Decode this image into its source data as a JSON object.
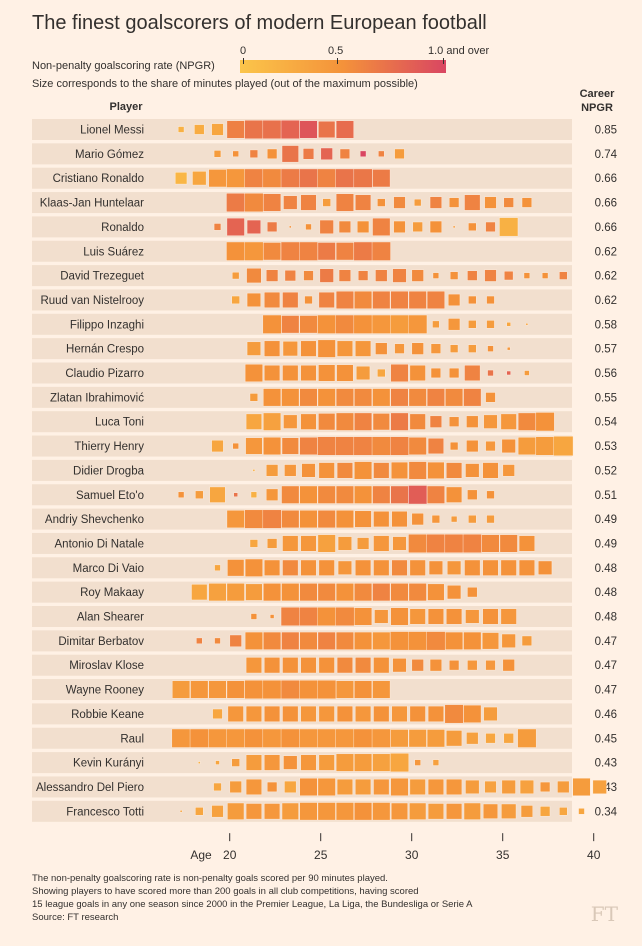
{
  "title": "The finest goalscorers of modern European football",
  "legend": {
    "color_label": "Non-penalty goalscoring rate (NPGR)",
    "size_label": "Size corresponds to the share of minutes played (out of the maximum possible)",
    "ticks": [
      "0",
      "0.5",
      "1.0 and over"
    ]
  },
  "header": {
    "player": "Player",
    "career": "Career\nNPGR"
  },
  "axis_label": "Age",
  "footer": [
    "The non-penalty goalscoring rate is non-penalty goals scored per 90 minutes played.",
    "Showing players to have scored more than 200 goals in all club competitions, having scored",
    "15 league goals in any one season since 2000 in the Premier League, La Liga, the Bundesliga or Serie A",
    "Source: FT research"
  ],
  "logo": "FT",
  "chart_data": {
    "type": "heatmap",
    "x": [
      17,
      18,
      19,
      20,
      21,
      22,
      23,
      24,
      25,
      26,
      27,
      28,
      29,
      30,
      31,
      32,
      33,
      34,
      35,
      36,
      37,
      38,
      39,
      40
    ],
    "xticks": [
      20,
      25,
      30,
      35,
      40
    ],
    "xlabel": "Age",
    "color_scale": {
      "min": 0,
      "mid": 0.5,
      "max": 1.0,
      "colors": [
        "#fbc54a",
        "#f4923a",
        "#d94662"
      ]
    },
    "players": [
      {
        "name": "Lionel Messi",
        "npgr": "0.85",
        "start": 17,
        "rate": [
          0.2,
          0.25,
          0.3,
          0.62,
          0.7,
          0.72,
          0.8,
          0.9,
          0.7,
          0.75
        ],
        "size": [
          0.3,
          0.5,
          0.6,
          0.9,
          0.95,
          0.95,
          0.95,
          0.9,
          0.85,
          0.9
        ]
      },
      {
        "name": "Mario Gómez",
        "npgr": "0.74",
        "start": 19,
        "rate": [
          0.4,
          0.5,
          0.6,
          0.5,
          0.7,
          0.65,
          0.8,
          0.6,
          1.0,
          0.6,
          0.4
        ],
        "size": [
          0.35,
          0.3,
          0.4,
          0.5,
          0.85,
          0.55,
          0.6,
          0.5,
          0.3,
          0.3,
          0.5
        ]
      },
      {
        "name": "Cristiano Ronaldo",
        "npgr": "0.66",
        "start": 17,
        "rate": [
          0.15,
          0.3,
          0.45,
          0.45,
          0.6,
          0.55,
          0.65,
          0.7,
          0.6,
          0.7,
          0.68,
          0.65
        ],
        "size": [
          0.6,
          0.7,
          0.9,
          0.95,
          0.95,
          0.95,
          0.95,
          0.95,
          0.95,
          0.95,
          0.95,
          0.9
        ]
      },
      {
        "name": "Klaas-Jan Huntelaar",
        "npgr": "0.66",
        "start": 20,
        "rate": [
          0.65,
          0.55,
          0.6,
          0.6,
          0.6,
          0.4,
          0.6,
          0.6,
          0.5,
          0.55,
          0.4,
          0.6,
          0.5,
          0.6,
          0.5,
          0.55,
          0.5
        ],
        "size": [
          0.95,
          0.95,
          0.9,
          0.7,
          0.8,
          0.4,
          0.9,
          0.8,
          0.4,
          0.6,
          0.35,
          0.6,
          0.5,
          0.8,
          0.6,
          0.5,
          0.5
        ]
      },
      {
        "name": "Ronaldo",
        "npgr": "0.66",
        "start": 19,
        "rate": [
          0.6,
          0.8,
          0.8,
          0.65,
          0.5,
          0.5,
          0.6,
          0.55,
          0.5,
          0.6,
          0.5,
          0.4,
          0.5,
          0.4,
          0.5,
          0.6,
          0.2
        ],
        "size": [
          0.35,
          0.9,
          0.7,
          0.5,
          0.1,
          0.3,
          0.7,
          0.6,
          0.6,
          0.9,
          0.6,
          0.5,
          0.6,
          0.1,
          0.4,
          0.5,
          0.95
        ]
      },
      {
        "name": "Luis Suárez",
        "npgr": "0.62",
        "start": 20,
        "rate": [
          0.5,
          0.45,
          0.55,
          0.6,
          0.6,
          0.65,
          0.6,
          0.65,
          0.6
        ],
        "size": [
          0.95,
          0.95,
          0.9,
          0.95,
          0.95,
          0.9,
          0.9,
          0.95,
          0.95
        ]
      },
      {
        "name": "David Trezeguet",
        "npgr": "0.62",
        "start": 20,
        "rate": [
          0.4,
          0.55,
          0.6,
          0.6,
          0.55,
          0.65,
          0.6,
          0.6,
          0.6,
          0.6,
          0.55,
          0.5,
          0.5,
          0.6,
          0.6,
          0.6,
          0.5,
          0.5,
          0.6
        ],
        "size": [
          0.35,
          0.75,
          0.6,
          0.55,
          0.5,
          0.7,
          0.6,
          0.5,
          0.6,
          0.7,
          0.6,
          0.3,
          0.4,
          0.5,
          0.6,
          0.45,
          0.3,
          0.3,
          0.4
        ]
      },
      {
        "name": "Ruud van Nistelrooy",
        "npgr": "0.62",
        "start": 20,
        "rate": [
          0.3,
          0.5,
          0.55,
          0.6,
          0.5,
          0.6,
          0.6,
          0.55,
          0.6,
          0.6,
          0.6,
          0.6,
          0.5,
          0.5,
          0.5
        ],
        "size": [
          0.4,
          0.7,
          0.8,
          0.8,
          0.4,
          0.8,
          0.9,
          0.9,
          0.9,
          0.9,
          0.9,
          0.9,
          0.6,
          0.4,
          0.4
        ]
      },
      {
        "name": "Filippo Inzaghi",
        "npgr": "0.58",
        "start": 22,
        "rate": [
          0.5,
          0.6,
          0.55,
          0.5,
          0.55,
          0.5,
          0.45,
          0.4,
          0.45,
          0.4,
          0.45,
          0.4,
          0.4,
          0.3,
          0.3
        ],
        "size": [
          0.95,
          0.9,
          0.9,
          0.95,
          0.95,
          0.95,
          0.95,
          0.95,
          0.95,
          0.35,
          0.6,
          0.4,
          0.4,
          0.2,
          0.1
        ]
      },
      {
        "name": "Hernán Crespo",
        "npgr": "0.57",
        "start": 21,
        "rate": [
          0.4,
          0.5,
          0.45,
          0.5,
          0.5,
          0.45,
          0.45,
          0.5,
          0.45,
          0.5,
          0.45,
          0.4,
          0.4,
          0.5,
          0.45
        ],
        "size": [
          0.7,
          0.8,
          0.75,
          0.8,
          0.9,
          0.8,
          0.8,
          0.6,
          0.5,
          0.6,
          0.5,
          0.4,
          0.4,
          0.3,
          0.15
        ]
      },
      {
        "name": "Claudio Pizarro",
        "npgr": "0.56",
        "start": 21,
        "rate": [
          0.5,
          0.5,
          0.5,
          0.5,
          0.5,
          0.5,
          0.4,
          0.3,
          0.6,
          0.5,
          0.5,
          0.5,
          0.6,
          0.7,
          0.8,
          0.4
        ],
        "size": [
          0.9,
          0.8,
          0.8,
          0.8,
          0.85,
          0.85,
          0.7,
          0.4,
          0.9,
          0.8,
          0.5,
          0.5,
          0.8,
          0.3,
          0.2,
          0.25
        ]
      },
      {
        "name": "Zlatan Ibrahimović",
        "npgr": "0.55",
        "start": 21,
        "rate": [
          0.4,
          0.5,
          0.5,
          0.55,
          0.5,
          0.55,
          0.55,
          0.5,
          0.6,
          0.55,
          0.6,
          0.55,
          0.6,
          0.5
        ],
        "size": [
          0.4,
          0.9,
          0.9,
          0.9,
          0.9,
          0.9,
          0.9,
          0.9,
          0.9,
          0.9,
          0.9,
          0.9,
          0.9,
          0.5
        ]
      },
      {
        "name": "Luca Toni",
        "npgr": "0.54",
        "start": 21,
        "rate": [
          0.3,
          0.35,
          0.45,
          0.5,
          0.55,
          0.55,
          0.6,
          0.55,
          0.65,
          0.55,
          0.6,
          0.5,
          0.5,
          0.45,
          0.45,
          0.55,
          0.5
        ],
        "size": [
          0.8,
          0.9,
          0.7,
          0.8,
          0.85,
          0.9,
          0.9,
          0.85,
          0.9,
          0.8,
          0.6,
          0.5,
          0.6,
          0.7,
          0.8,
          0.9,
          0.95
        ]
      },
      {
        "name": "Thierry Henry",
        "npgr": "0.53",
        "start": 19,
        "rate": [
          0.3,
          0.5,
          0.45,
          0.5,
          0.55,
          0.6,
          0.6,
          0.6,
          0.6,
          0.55,
          0.6,
          0.55,
          0.6,
          0.5,
          0.5,
          0.45,
          0.5,
          0.4,
          0.4,
          0.3
        ],
        "size": [
          0.6,
          0.3,
          0.85,
          0.9,
          0.85,
          0.9,
          0.95,
          0.95,
          0.95,
          0.95,
          0.95,
          0.9,
          0.8,
          0.4,
          0.6,
          0.5,
          0.7,
          0.9,
          0.95,
          1.0
        ]
      },
      {
        "name": "Didier Drogba",
        "npgr": "0.52",
        "start": 21,
        "rate": [
          0.2,
          0.4,
          0.45,
          0.5,
          0.5,
          0.55,
          0.5,
          0.55,
          0.5,
          0.55,
          0.5,
          0.55,
          0.5,
          0.5,
          0.45
        ],
        "size": [
          0.1,
          0.6,
          0.6,
          0.7,
          0.8,
          0.8,
          0.9,
          0.8,
          0.85,
          0.9,
          0.85,
          0.8,
          0.7,
          0.8,
          0.6
        ]
      },
      {
        "name": "Samuel Eto'o",
        "npgr": "0.51",
        "start": 17,
        "rate": [
          0.5,
          0.4,
          0.3,
          0.7,
          0.2,
          0.45,
          0.55,
          0.5,
          0.55,
          0.55,
          0.5,
          0.6,
          0.7,
          0.85,
          0.6,
          0.5,
          0.5,
          0.5
        ],
        "size": [
          0.3,
          0.4,
          0.8,
          0.2,
          0.3,
          0.6,
          0.9,
          0.9,
          0.9,
          0.9,
          0.9,
          0.9,
          0.9,
          0.95,
          0.9,
          0.8,
          0.5,
          0.4
        ]
      },
      {
        "name": "Andriy Shevchenko",
        "npgr": "0.49",
        "start": 20,
        "rate": [
          0.45,
          0.55,
          0.6,
          0.55,
          0.5,
          0.55,
          0.5,
          0.5,
          0.5,
          0.5,
          0.5,
          0.45,
          0.4,
          0.4,
          0.4
        ],
        "size": [
          0.9,
          0.95,
          0.95,
          0.9,
          0.9,
          0.9,
          0.9,
          0.85,
          0.8,
          0.8,
          0.6,
          0.4,
          0.3,
          0.4,
          0.4
        ]
      },
      {
        "name": "Antonio Di Natale",
        "npgr": "0.49",
        "start": 21,
        "rate": [
          0.3,
          0.4,
          0.45,
          0.45,
          0.35,
          0.4,
          0.4,
          0.45,
          0.45,
          0.55,
          0.6,
          0.6,
          0.6,
          0.55,
          0.55,
          0.5
        ],
        "size": [
          0.4,
          0.5,
          0.8,
          0.8,
          0.9,
          0.7,
          0.6,
          0.8,
          0.7,
          0.95,
          0.95,
          0.95,
          0.95,
          0.9,
          0.9,
          0.8
        ]
      },
      {
        "name": "Marco Di Vaio",
        "npgr": "0.48",
        "start": 19,
        "rate": [
          0.3,
          0.5,
          0.5,
          0.5,
          0.55,
          0.5,
          0.5,
          0.45,
          0.5,
          0.5,
          0.55,
          0.5,
          0.5,
          0.45,
          0.5,
          0.5,
          0.5,
          0.5,
          0.5
        ],
        "size": [
          0.3,
          0.85,
          0.9,
          0.8,
          0.8,
          0.8,
          0.8,
          0.7,
          0.8,
          0.8,
          0.8,
          0.8,
          0.7,
          0.7,
          0.8,
          0.8,
          0.8,
          0.8,
          0.7
        ]
      },
      {
        "name": "Roy Makaay",
        "npgr": "0.48",
        "start": 18,
        "rate": [
          0.3,
          0.35,
          0.4,
          0.4,
          0.5,
          0.5,
          0.55,
          0.55,
          0.5,
          0.55,
          0.6,
          0.55,
          0.55,
          0.5,
          0.5,
          0.5
        ],
        "size": [
          0.8,
          0.9,
          0.9,
          0.85,
          0.9,
          0.9,
          0.9,
          0.9,
          0.9,
          0.9,
          0.9,
          0.9,
          0.9,
          0.85,
          0.7,
          0.5
        ]
      },
      {
        "name": "Alan Shearer",
        "npgr": "0.48",
        "start": 21,
        "rate": [
          0.5,
          0.5,
          0.6,
          0.6,
          0.5,
          0.55,
          0.5,
          0.45,
          0.5,
          0.45,
          0.5,
          0.5,
          0.45,
          0.5,
          0.45
        ],
        "size": [
          0.3,
          0.2,
          0.95,
          0.95,
          0.95,
          0.95,
          0.9,
          0.7,
          0.9,
          0.8,
          0.8,
          0.8,
          0.7,
          0.8,
          0.8
        ]
      },
      {
        "name": "Dimitar Berbatov",
        "npgr": "0.47",
        "start": 18,
        "rate": [
          0.6,
          0.55,
          0.6,
          0.5,
          0.55,
          0.6,
          0.55,
          0.6,
          0.55,
          0.5,
          0.45,
          0.5,
          0.5,
          0.55,
          0.5,
          0.5,
          0.45,
          0.45,
          0.4
        ],
        "size": [
          0.3,
          0.3,
          0.6,
          0.9,
          0.9,
          0.9,
          0.9,
          0.9,
          0.9,
          0.9,
          0.9,
          0.95,
          0.95,
          0.95,
          0.9,
          0.9,
          0.85,
          0.7,
          0.5
        ]
      },
      {
        "name": "Miroslav Klose",
        "npgr": "0.47",
        "start": 21,
        "rate": [
          0.45,
          0.5,
          0.5,
          0.5,
          0.5,
          0.55,
          0.55,
          0.5,
          0.5,
          0.55,
          0.5,
          0.5,
          0.45,
          0.45,
          0.5
        ],
        "size": [
          0.8,
          0.8,
          0.8,
          0.8,
          0.8,
          0.8,
          0.8,
          0.8,
          0.7,
          0.6,
          0.6,
          0.5,
          0.5,
          0.5,
          0.6
        ]
      },
      {
        "name": "Wayne Rooney",
        "npgr": "0.47",
        "start": 17,
        "rate": [
          0.4,
          0.45,
          0.45,
          0.5,
          0.5,
          0.5,
          0.55,
          0.5,
          0.5,
          0.45,
          0.5,
          0.45
        ],
        "size": [
          0.9,
          0.9,
          0.9,
          0.9,
          0.95,
          0.95,
          0.95,
          0.95,
          0.95,
          0.9,
          0.9,
          0.9
        ]
      },
      {
        "name": "Robbie Keane",
        "npgr": "0.46",
        "start": 19,
        "rate": [
          0.3,
          0.45,
          0.45,
          0.5,
          0.5,
          0.45,
          0.45,
          0.5,
          0.45,
          0.5,
          0.45,
          0.5,
          0.5,
          0.55,
          0.5,
          0.4
        ],
        "size": [
          0.5,
          0.8,
          0.8,
          0.8,
          0.8,
          0.8,
          0.8,
          0.8,
          0.8,
          0.8,
          0.8,
          0.8,
          0.8,
          0.95,
          0.9,
          0.7
        ]
      },
      {
        "name": "Raul",
        "npgr": "0.45",
        "start": 17,
        "rate": [
          0.45,
          0.5,
          0.45,
          0.45,
          0.5,
          0.45,
          0.5,
          0.45,
          0.45,
          0.45,
          0.5,
          0.45,
          0.4,
          0.4,
          0.4,
          0.4,
          0.35,
          0.3,
          0.3,
          0.4
        ],
        "size": [
          0.95,
          0.95,
          0.95,
          0.95,
          0.95,
          0.95,
          0.95,
          0.95,
          0.95,
          0.95,
          0.95,
          0.95,
          0.9,
          0.9,
          0.9,
          0.8,
          0.6,
          0.5,
          0.5,
          0.95
        ]
      },
      {
        "name": "Kevin Kurányi",
        "npgr": "0.43",
        "start": 18,
        "rate": [
          0.2,
          0.3,
          0.4,
          0.4,
          0.45,
          0.5,
          0.45,
          0.4,
          0.4,
          0.4,
          0.35,
          0.3,
          0.45,
          0.35
        ],
        "size": [
          0.1,
          0.2,
          0.4,
          0.8,
          0.8,
          0.7,
          0.8,
          0.8,
          0.9,
          0.9,
          0.9,
          0.95,
          0.3,
          0.3
        ]
      },
      {
        "name": "Alessandro Del Piero",
        "npgr": "0.43",
        "start": 19,
        "rate": [
          0.3,
          0.4,
          0.45,
          0.5,
          0.3,
          0.5,
          0.45,
          0.4,
          0.4,
          0.45,
          0.45,
          0.4,
          0.45,
          0.45,
          0.4,
          0.35,
          0.4,
          0.35,
          0.45,
          0.4,
          0.4,
          0.35
        ],
        "size": [
          0.4,
          0.6,
          0.8,
          0.5,
          0.6,
          0.9,
          0.9,
          0.8,
          0.8,
          0.8,
          0.9,
          0.8,
          0.8,
          0.8,
          0.7,
          0.6,
          0.7,
          0.7,
          0.5,
          0.6,
          0.9,
          0.7
        ]
      },
      {
        "name": "Francesco Totti",
        "npgr": "0.34",
        "start": 17,
        "rate": [
          0.3,
          0.3,
          0.35,
          0.4,
          0.45,
          0.45,
          0.4,
          0.45,
          0.45,
          0.45,
          0.5,
          0.45,
          0.45,
          0.4,
          0.4,
          0.45,
          0.4,
          0.45,
          0.4,
          0.4,
          0.3,
          0.3,
          0.3
        ],
        "size": [
          0.1,
          0.4,
          0.6,
          0.85,
          0.8,
          0.8,
          0.85,
          0.9,
          0.9,
          0.9,
          0.9,
          0.9,
          0.85,
          0.85,
          0.8,
          0.8,
          0.85,
          0.75,
          0.75,
          0.6,
          0.5,
          0.4,
          0.3
        ]
      }
    ]
  }
}
